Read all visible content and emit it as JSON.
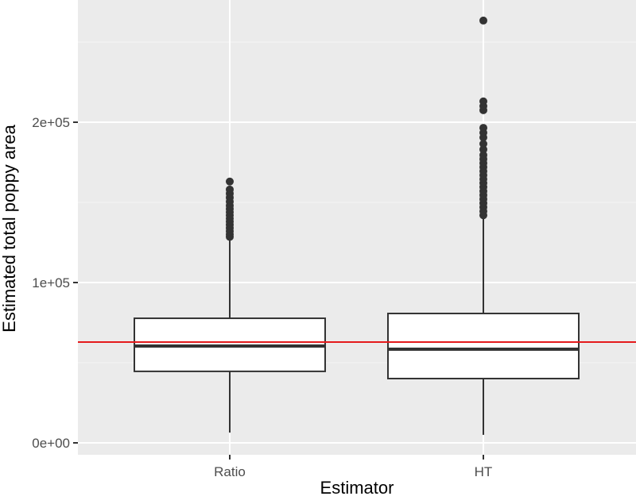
{
  "chart_data": {
    "type": "boxplot",
    "title": "",
    "xlabel": "Estimator",
    "ylabel": "Estimated total poppy area",
    "categories": [
      "Ratio",
      "HT"
    ],
    "ylim": [
      -8000,
      285000
    ],
    "yticks": [
      0,
      100000,
      200000
    ],
    "ytick_labels": [
      "0e+00",
      "1e+05",
      "2e+05"
    ],
    "grid": true,
    "reference_line": {
      "value": 62900,
      "color": "#e41a1c",
      "orientation": "horizontal"
    },
    "series": [
      {
        "name": "Ratio",
        "lower_whisker": 6400,
        "q1": 44600,
        "median": 60400,
        "q3": 77700,
        "upper_whisker": 126700,
        "outliers": [
          128500,
          130000,
          132000,
          134000,
          136000,
          138000,
          140000,
          142000,
          144000,
          146000,
          148000,
          150500,
          153000,
          155500,
          158000,
          163000
        ]
      },
      {
        "name": "HT",
        "lower_whisker": 5000,
        "q1": 40100,
        "median": 58400,
        "q3": 80700,
        "upper_whisker": 140100,
        "outliers": [
          142000,
          144500,
          147000,
          149500,
          152000,
          154500,
          157000,
          159500,
          162000,
          164500,
          167000,
          169500,
          172000,
          174500,
          177000,
          179500,
          183000,
          186500,
          190500,
          193500,
          196500,
          207500,
          210000,
          213000,
          263400
        ]
      }
    ],
    "colors": {
      "panel_bg": "#ebebeb",
      "grid_major": "#ffffff",
      "box_fill": "#ffffff",
      "box_line": "#333333",
      "outlier": "#333333",
      "reference_line": "#e41a1c"
    }
  }
}
